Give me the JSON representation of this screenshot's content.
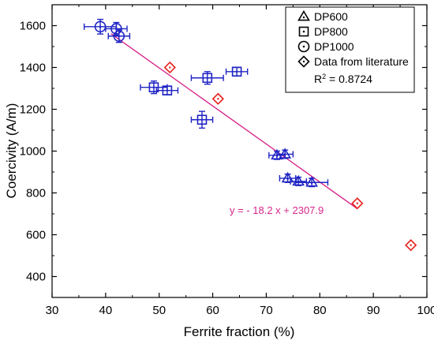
{
  "chart_data": {
    "type": "scatter",
    "xlabel": "Ferrite fraction (%)",
    "ylabel": "Coercivity (A/m)",
    "xlim": [
      30,
      100
    ],
    "ylim": [
      300,
      1700
    ],
    "x_ticks": [
      30,
      40,
      50,
      60,
      70,
      80,
      90,
      100
    ],
    "y_ticks": [
      400,
      600,
      800,
      1000,
      1200,
      1400,
      1600
    ],
    "grid": false,
    "legend_position": "top-right",
    "series": [
      {
        "name": "DP600",
        "marker": "triangle",
        "color": "#1f24c4",
        "points": [
          {
            "x": 72.0,
            "y": 980,
            "xerr": 1.5,
            "yerr": 20
          },
          {
            "x": 73.5,
            "y": 985,
            "xerr": 1.5,
            "yerr": 20
          },
          {
            "x": 74.0,
            "y": 870,
            "xerr": 1.5,
            "yerr": 20
          },
          {
            "x": 76.0,
            "y": 855,
            "xerr": 1.5,
            "yerr": 20
          },
          {
            "x": 78.5,
            "y": 850,
            "xerr": 3.0,
            "yerr": 20
          }
        ]
      },
      {
        "name": "DP800",
        "marker": "square",
        "color": "#1f24c4",
        "points": [
          {
            "x": 49.0,
            "y": 1305,
            "xerr": 2.5,
            "yerr": 30
          },
          {
            "x": 51.5,
            "y": 1290,
            "xerr": 2.0,
            "yerr": 20
          },
          {
            "x": 58.0,
            "y": 1150,
            "xerr": 2.0,
            "yerr": 40
          },
          {
            "x": 59.0,
            "y": 1350,
            "xerr": 3.0,
            "yerr": 30
          },
          {
            "x": 64.5,
            "y": 1380,
            "xerr": 2.0,
            "yerr": 20
          }
        ]
      },
      {
        "name": "DP1000",
        "marker": "circle",
        "color": "#1f24c4",
        "points": [
          {
            "x": 39.0,
            "y": 1595,
            "xerr": 3.0,
            "yerr": 35
          },
          {
            "x": 42.0,
            "y": 1585,
            "xerr": 2.0,
            "yerr": 30
          },
          {
            "x": 42.5,
            "y": 1550,
            "xerr": 2.0,
            "yerr": 30
          }
        ]
      },
      {
        "name": "Data from literature",
        "marker": "diamond",
        "color": "#e8231e",
        "points": [
          {
            "x": 52.0,
            "y": 1400
          },
          {
            "x": 61.0,
            "y": 1250
          },
          {
            "x": 87.0,
            "y": 750
          },
          {
            "x": 97.0,
            "y": 550
          }
        ]
      }
    ],
    "fit": {
      "equation": "y = - 18.2 x + 2307.9",
      "r_squared_label": "R",
      "r_squared_sup": "2",
      "r_squared_value": " = 0.8724",
      "slope": -18.2,
      "intercept": 2307.9,
      "x_range": [
        41,
        87
      ],
      "color": "#d6268a"
    },
    "colors": {
      "axis": "#000000",
      "data": "#1f24c4",
      "literature": "#e8231e",
      "fit": "#d6268a"
    }
  }
}
